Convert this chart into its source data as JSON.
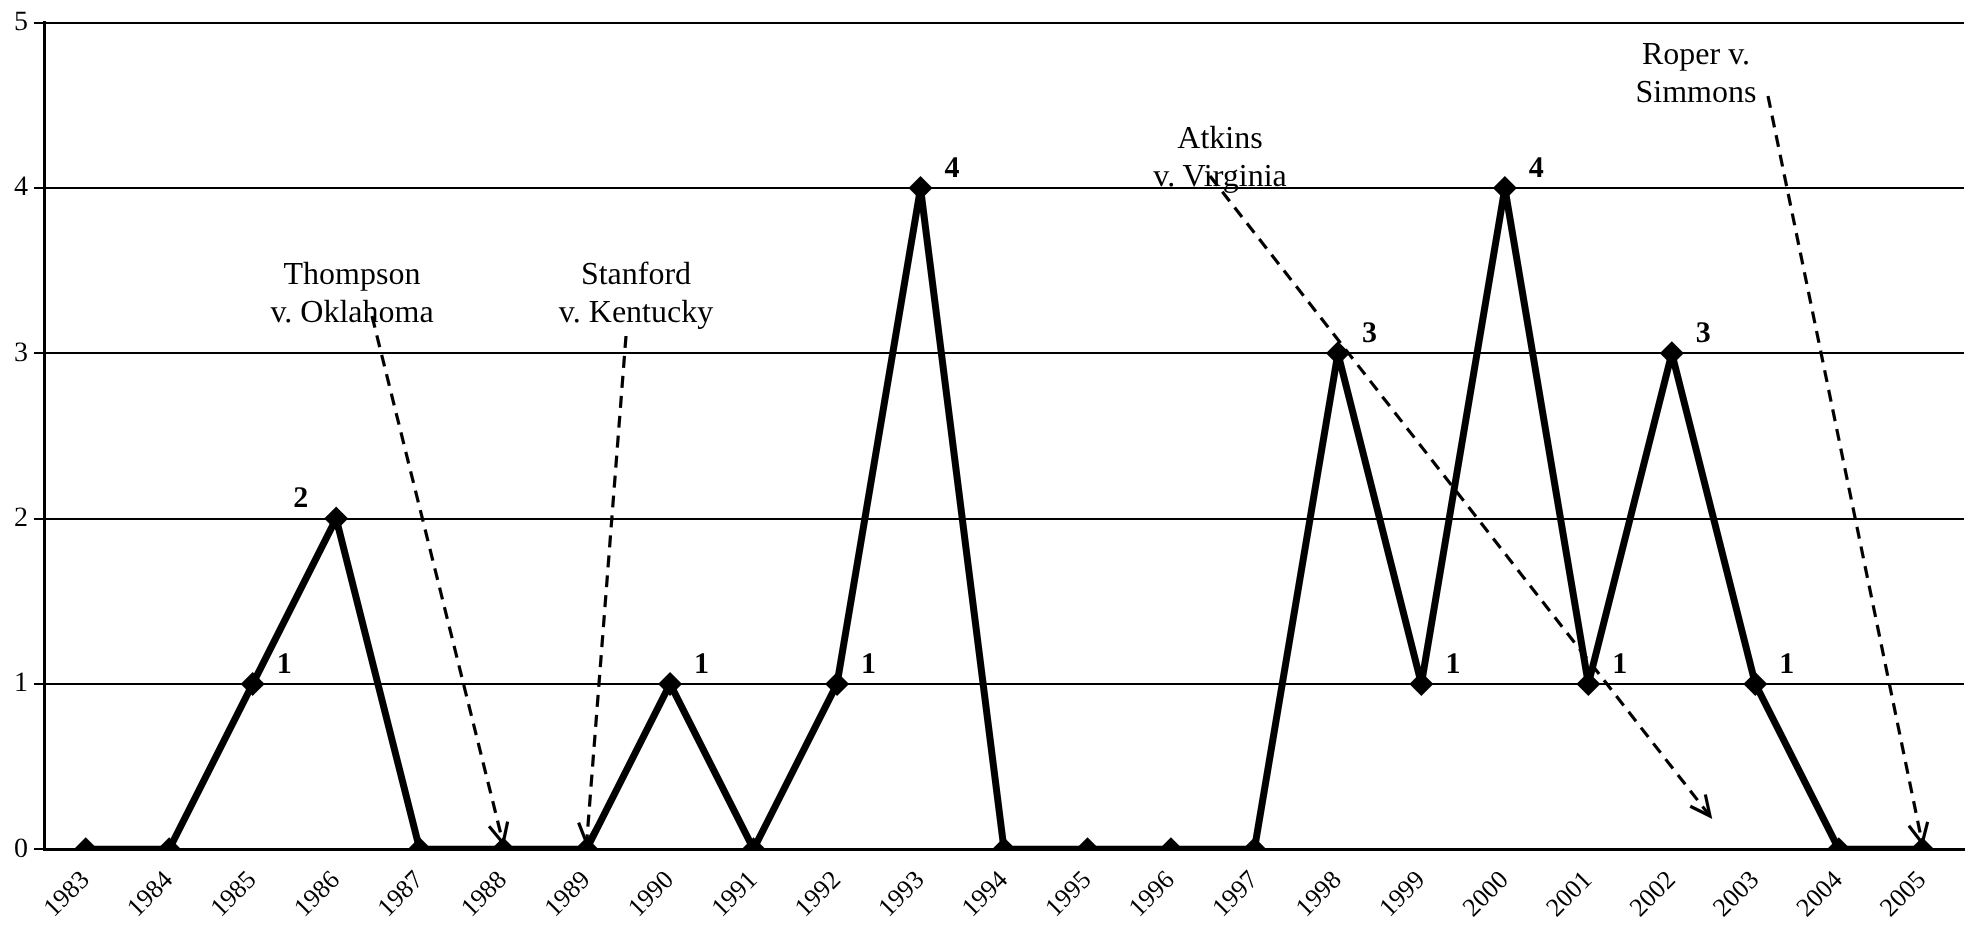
{
  "chart_data": {
    "type": "line",
    "categories": [
      "1983",
      "1984",
      "1985",
      "1986",
      "1987",
      "1988",
      "1989",
      "1990",
      "1991",
      "1992",
      "1993",
      "1994",
      "1995",
      "1996",
      "1997",
      "1998",
      "1999",
      "2000",
      "2001",
      "2002",
      "2003",
      "2004",
      "2005"
    ],
    "series": [
      {
        "color": "#000000",
        "values": [
          0,
          0,
          1,
          2,
          0,
          0,
          0,
          1,
          0,
          1,
          4,
          0,
          0,
          0,
          0,
          3,
          1,
          4,
          1,
          3,
          1,
          0,
          0
        ],
        "value_labels": [
          null,
          null,
          "1",
          "2",
          null,
          null,
          null,
          "1",
          null,
          "1",
          "4",
          null,
          null,
          null,
          null,
          "3",
          "1",
          "4",
          "1",
          "3",
          "1",
          null,
          null
        ]
      }
    ],
    "ylim": [
      0,
      5
    ],
    "yticks": [
      0,
      1,
      2,
      3,
      4,
      5
    ],
    "grid": "y",
    "legend": false,
    "marker": "diamond",
    "line_style": "solid",
    "annotations": [
      {
        "text": "Thompson\nv. Oklahoma",
        "x": "1988",
        "y": 0
      },
      {
        "text": "Stanford\nv. Kentucky",
        "x": "1989",
        "y": 0
      },
      "Atkins\nv. Virginia",
      {
        "text": "Roper v.\nSimmons",
        "x": "2005",
        "y": 0
      }
    ]
  }
}
